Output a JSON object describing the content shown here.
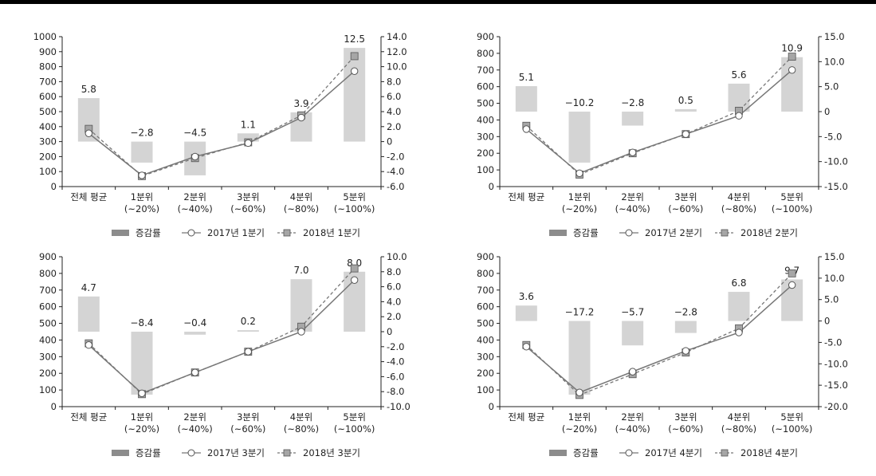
{
  "colors": {
    "bar": "#d4d4d4",
    "legend_bar": "#8c8c8c",
    "line_2017": "#777777",
    "line_2018": "#777777",
    "marker_2018": "#a6a6a6",
    "axis": "#222222"
  },
  "chart_data": [
    {
      "type": "bar+line",
      "categories": [
        [
          "전체 평균"
        ],
        [
          "1분위",
          "(~20%)"
        ],
        [
          "2분위",
          "(~40%)"
        ],
        [
          "3분위",
          "(~60%)"
        ],
        [
          "4분위",
          "(~80%)"
        ],
        [
          "5분위",
          "(~100%)"
        ]
      ],
      "y_left": {
        "min": 0,
        "max": 1000,
        "step": 100,
        "ticks": [
          "0",
          "100",
          "200",
          "300",
          "400",
          "500",
          "600",
          "700",
          "800",
          "900",
          "1000"
        ]
      },
      "y_right": {
        "min": -6,
        "max": 14,
        "step": 2,
        "ticks": [
          "-6.0",
          "-4.0",
          "-2.0",
          "0",
          "2.0",
          "4.0",
          "6.0",
          "8.0",
          "10.0",
          "12.0",
          "14.0"
        ]
      },
      "bars": {
        "name": "증감률",
        "values": [
          5.8,
          -2.8,
          -4.5,
          1.1,
          3.9,
          12.5
        ],
        "labels": [
          "5.8",
          "−2.8",
          "−4.5",
          "1.1",
          "3.9",
          "12.5"
        ]
      },
      "series": [
        {
          "name": "2017년 1분기",
          "style": "solid-circle",
          "values": [
            355,
            75,
            200,
            290,
            460,
            770
          ]
        },
        {
          "name": "2018년 1분기",
          "style": "dashed-square",
          "values": [
            385,
            70,
            190,
            295,
            475,
            870
          ]
        }
      ],
      "legend": [
        "증감률",
        "2017년 1분기",
        "2018년 1분기"
      ]
    },
    {
      "type": "bar+line",
      "categories": [
        [
          "전체 평균"
        ],
        [
          "1분위",
          "(~20%)"
        ],
        [
          "2분위",
          "(~40%)"
        ],
        [
          "3분위",
          "(~60%)"
        ],
        [
          "4분위",
          "(~80%)"
        ],
        [
          "5분위",
          "(~100%)"
        ]
      ],
      "y_left": {
        "min": 0,
        "max": 900,
        "step": 100,
        "ticks": [
          "0",
          "100",
          "200",
          "300",
          "400",
          "500",
          "600",
          "700",
          "800",
          "900"
        ]
      },
      "y_right": {
        "min": -15,
        "max": 15,
        "step": 5,
        "ticks": [
          "-15.0",
          "-10.0",
          "-5.0",
          "0",
          "5.0",
          "10.0",
          "15.0"
        ]
      },
      "bars": {
        "name": "증감률",
        "values": [
          5.1,
          -10.2,
          -2.8,
          0.5,
          5.6,
          10.9
        ],
        "labels": [
          "5.1",
          "−10.2",
          "−2.8",
          "0.5",
          "5.6",
          "10.9"
        ]
      },
      "series": [
        {
          "name": "2017년 2분기",
          "style": "solid-circle",
          "values": [
            345,
            80,
            205,
            315,
            425,
            700
          ]
        },
        {
          "name": "2018년 2분기",
          "style": "dashed-square",
          "values": [
            365,
            72,
            200,
            315,
            455,
            780
          ]
        }
      ],
      "legend": [
        "증감률",
        "2017년 2분기",
        "2018년 2분기"
      ]
    },
    {
      "type": "bar+line",
      "categories": [
        [
          "전체 평균"
        ],
        [
          "1분위",
          "(~20%)"
        ],
        [
          "2분위",
          "(~40%)"
        ],
        [
          "3분위",
          "(~60%)"
        ],
        [
          "4분위",
          "(~80%)"
        ],
        [
          "5분위",
          "(~100%)"
        ]
      ],
      "y_left": {
        "min": 0,
        "max": 900,
        "step": 100,
        "ticks": [
          "0",
          "100",
          "200",
          "300",
          "400",
          "500",
          "600",
          "700",
          "800",
          "900"
        ]
      },
      "y_right": {
        "min": -10,
        "max": 10,
        "step": 2,
        "ticks": [
          "-10.0",
          "-8.0",
          "-6.0",
          "-4.0",
          "-2.0",
          "0",
          "2.0",
          "4.0",
          "6.0",
          "8.0",
          "10.0"
        ]
      },
      "bars": {
        "name": "증감률",
        "values": [
          4.7,
          -8.4,
          -0.4,
          0.2,
          7.0,
          8.0
        ],
        "labels": [
          "4.7",
          "−8.4",
          "−0.4",
          "0.2",
          "7.0",
          "8.0"
        ]
      },
      "series": [
        {
          "name": "2017년 3분기",
          "style": "solid-circle",
          "values": [
            370,
            80,
            205,
            330,
            450,
            760
          ]
        },
        {
          "name": "2018년 3분기",
          "style": "dashed-square",
          "values": [
            380,
            75,
            205,
            330,
            480,
            830
          ]
        }
      ],
      "legend": [
        "증감률",
        "2017년 3분기",
        "2018년 3분기"
      ]
    },
    {
      "type": "bar+line",
      "categories": [
        [
          "전체 평균"
        ],
        [
          "1분위",
          "(~20%)"
        ],
        [
          "2분위",
          "(~40%)"
        ],
        [
          "3분위",
          "(~60%)"
        ],
        [
          "4분위",
          "(~80%)"
        ],
        [
          "5분위",
          "(~100%)"
        ]
      ],
      "y_left": {
        "min": 0,
        "max": 900,
        "step": 100,
        "ticks": [
          "0",
          "100",
          "200",
          "300",
          "400",
          "500",
          "600",
          "700",
          "800",
          "900"
        ]
      },
      "y_right": {
        "min": -20,
        "max": 15,
        "step": 5,
        "ticks": [
          "-20.0",
          "-15.0",
          "-10.0",
          "-5.0",
          "0",
          "5.0",
          "10.0",
          "15.0"
        ]
      },
      "bars": {
        "name": "증감률",
        "values": [
          3.6,
          -17.2,
          -5.7,
          -2.8,
          6.8,
          9.7
        ],
        "labels": [
          "3.6",
          "−17.2",
          "−5.7",
          "−2.8",
          "6.8",
          "9.7"
        ]
      },
      "series": [
        {
          "name": "2017년 4분기",
          "style": "solid-circle",
          "values": [
            360,
            85,
            210,
            335,
            445,
            730
          ]
        },
        {
          "name": "2018년 4분기",
          "style": "dashed-square",
          "values": [
            370,
            70,
            195,
            325,
            470,
            800
          ]
        }
      ],
      "legend": [
        "증감률",
        "2017년 4분기",
        "2018년 4분기"
      ]
    }
  ]
}
